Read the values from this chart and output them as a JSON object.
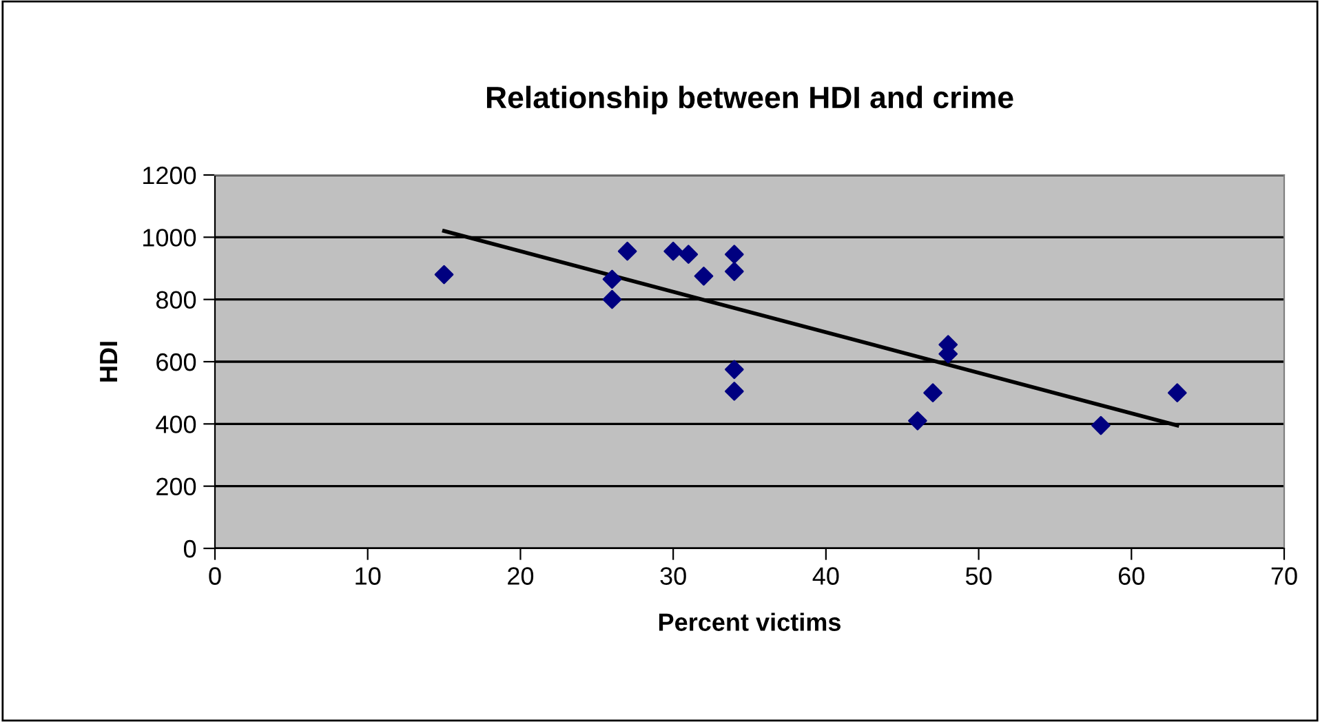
{
  "chart_data": {
    "type": "scatter",
    "title": "Relationship between HDI and crime",
    "xlabel": "Percent victims",
    "ylabel": "HDI",
    "series": [
      {
        "color": "#000080",
        "marker": "diamond",
        "x": [
          15,
          26,
          26,
          27,
          30,
          31,
          32,
          34,
          34,
          34,
          34,
          46,
          47,
          48,
          48,
          58,
          63
        ],
        "values": [
          880,
          865,
          800,
          955,
          955,
          945,
          875,
          945,
          890,
          575,
          505,
          410,
          500,
          655,
          625,
          395,
          500
        ]
      },
      {
        "type": "line",
        "color": "#000000",
        "marker": "none",
        "x": [
          15,
          63
        ],
        "values": [
          1020,
          395
        ]
      }
    ],
    "xlim": [
      0,
      70
    ],
    "xticks": [
      0,
      10,
      20,
      30,
      40,
      50,
      60,
      70
    ],
    "ylim": [
      0,
      1200
    ],
    "yticks": [
      0,
      200,
      400,
      600,
      800,
      1000,
      1200
    ],
    "grid": "y",
    "legend": false
  }
}
